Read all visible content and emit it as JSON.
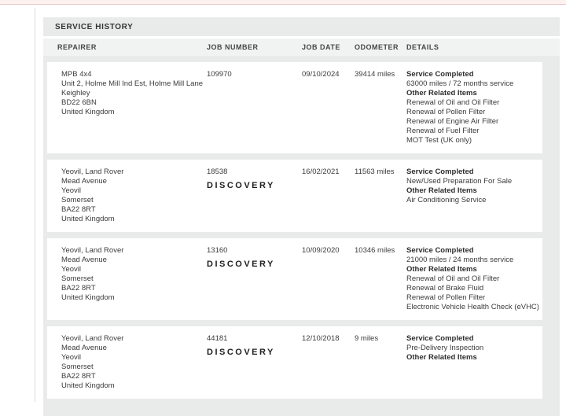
{
  "colors": {
    "accent_pink_bg": "#fdf1ef",
    "accent_pink_line": "#e9c8c4",
    "panel_bg": "#e9ebea",
    "header_row_bg": "#f1f2f2",
    "card_bg": "#ffffff",
    "text": "#3b3b3b"
  },
  "panel": {
    "title": "SERVICE HISTORY"
  },
  "table": {
    "columns": [
      {
        "label": "REPAIRER"
      },
      {
        "label": "JOB NUMBER"
      },
      {
        "label": "JOB DATE"
      },
      {
        "label": "ODOMETER"
      },
      {
        "label": "DETAILS"
      }
    ],
    "rows": [
      {
        "repairer_lines": [
          "MPB 4x4",
          "Unit 2, Holme Mill Ind Est, Holme Mill Lane",
          "Keighley",
          "BD22 6BN",
          "United Kingdom"
        ],
        "job_number": "109970",
        "brand": "",
        "job_date": "09/10/2024",
        "odometer": "39414 miles",
        "details": [
          {
            "text": "Service Completed",
            "bold": true
          },
          {
            "text": "63000 miles / 72 months service",
            "bold": false
          },
          {
            "text": "Other Related Items",
            "bold": true
          },
          {
            "text": "Renewal of Oil and Oil Filter",
            "bold": false
          },
          {
            "text": "Renewal of Pollen Filter",
            "bold": false
          },
          {
            "text": "Renewal of Engine Air Filter",
            "bold": false
          },
          {
            "text": "Renewal of Fuel Filter",
            "bold": false
          },
          {
            "text": "MOT Test (UK only)",
            "bold": false
          }
        ]
      },
      {
        "repairer_lines": [
          "Yeovil, Land Rover",
          "Mead Avenue",
          "Yeovil",
          "Somerset",
          "BA22 8RT",
          "United Kingdom"
        ],
        "job_number": "18538",
        "brand": "DISCOVERY",
        "job_date": "16/02/2021",
        "odometer": "11563 miles",
        "details": [
          {
            "text": "Service Completed",
            "bold": true
          },
          {
            "text": "New/Used Preparation For Sale",
            "bold": false
          },
          {
            "text": "Other Related Items",
            "bold": true
          },
          {
            "text": "Air Conditioning Service",
            "bold": false
          }
        ]
      },
      {
        "repairer_lines": [
          "Yeovil, Land Rover",
          "Mead Avenue",
          "Yeovil",
          "Somerset",
          "BA22 8RT",
          "United Kingdom"
        ],
        "job_number": "13160",
        "brand": "DISCOVERY",
        "job_date": "10/09/2020",
        "odometer": "10346 miles",
        "details": [
          {
            "text": "Service Completed",
            "bold": true
          },
          {
            "text": "21000 miles / 24 months service",
            "bold": false
          },
          {
            "text": "Other Related Items",
            "bold": true
          },
          {
            "text": "Renewal of Oil and Oil Filter",
            "bold": false
          },
          {
            "text": "Renewal of Brake Fluid",
            "bold": false
          },
          {
            "text": "Renewal of Pollen Filter",
            "bold": false
          },
          {
            "text": "Electronic Vehicle Health Check (eVHC)",
            "bold": false
          }
        ]
      },
      {
        "repairer_lines": [
          "Yeovil, Land Rover",
          "Mead Avenue",
          "Yeovil",
          "Somerset",
          "BA22 8RT",
          "United Kingdom"
        ],
        "job_number": "44181",
        "brand": "DISCOVERY",
        "job_date": "12/10/2018",
        "odometer": "9 miles",
        "details": [
          {
            "text": "Service Completed",
            "bold": true
          },
          {
            "text": "Pre-Delivery Inspection",
            "bold": false
          },
          {
            "text": "Other Related Items",
            "bold": true
          }
        ]
      }
    ]
  }
}
